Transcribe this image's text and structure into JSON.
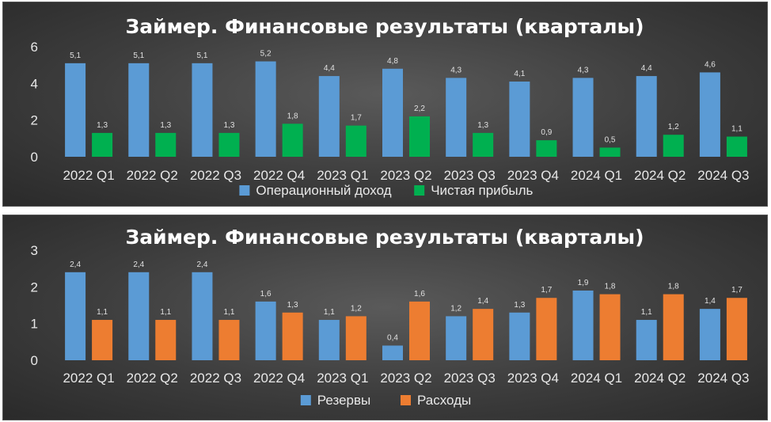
{
  "chart_data": [
    {
      "type": "bar",
      "title": "Займер. Финансовые результаты (кварталы)",
      "categories": [
        "2022 Q1",
        "2022 Q2",
        "2022 Q3",
        "2022 Q4",
        "2023 Q1",
        "2023 Q2",
        "2023 Q3",
        "2023 Q4",
        "2024 Q1",
        "2024 Q2",
        "2024 Q3"
      ],
      "series": [
        {
          "name": "Операционный доход",
          "color": "#5b9bd5",
          "values": [
            5.1,
            5.1,
            5.1,
            5.2,
            4.4,
            4.8,
            4.3,
            4.1,
            4.3,
            4.4,
            4.6
          ],
          "labels": [
            "5,1",
            "5,1",
            "5,1",
            "5,2",
            "4,4",
            "4,8",
            "4,3",
            "4,1",
            "4,3",
            "4,4",
            "4,6"
          ]
        },
        {
          "name": "Чистая прибыль",
          "color": "#00b050",
          "values": [
            1.3,
            1.3,
            1.3,
            1.8,
            1.7,
            2.2,
            1.3,
            0.9,
            0.5,
            1.2,
            1.1
          ],
          "labels": [
            "1,3",
            "1,3",
            "1,3",
            "1,8",
            "1,7",
            "2,2",
            "1,3",
            "0,9",
            "0,5",
            "1,2",
            "1,1"
          ]
        }
      ],
      "ylim": [
        0,
        6
      ],
      "yticks": [
        "0",
        "2",
        "4",
        "6"
      ],
      "grid": false,
      "legend": "bottom"
    },
    {
      "type": "bar",
      "title": "Займер. Финансовые результаты (кварталы)",
      "categories": [
        "2022 Q1",
        "2022 Q2",
        "2022 Q3",
        "2022 Q4",
        "2023 Q1",
        "2023 Q2",
        "2023 Q3",
        "2023 Q4",
        "2024 Q1",
        "2024 Q2",
        "2024 Q3"
      ],
      "series": [
        {
          "name": "Резервы",
          "color": "#5b9bd5",
          "values": [
            2.4,
            2.4,
            2.4,
            1.6,
            1.1,
            0.4,
            1.2,
            1.3,
            1.9,
            1.1,
            1.4
          ],
          "labels": [
            "2,4",
            "2,4",
            "2,4",
            "1,6",
            "1,1",
            "0,4",
            "1,2",
            "1,3",
            "1,9",
            "1,1",
            "1,4"
          ]
        },
        {
          "name": "Расходы",
          "color": "#ed7d31",
          "values": [
            1.1,
            1.1,
            1.1,
            1.3,
            1.2,
            1.6,
            1.4,
            1.7,
            1.8,
            1.8,
            1.7
          ],
          "labels": [
            "1,1",
            "1,1",
            "1,1",
            "1,3",
            "1,2",
            "1,6",
            "1,4",
            "1,7",
            "1,8",
            "1,8",
            "1,7"
          ]
        }
      ],
      "ylim": [
        0,
        3
      ],
      "yticks": [
        "0",
        "1",
        "2",
        "3"
      ],
      "grid": false,
      "legend": "bottom"
    }
  ]
}
